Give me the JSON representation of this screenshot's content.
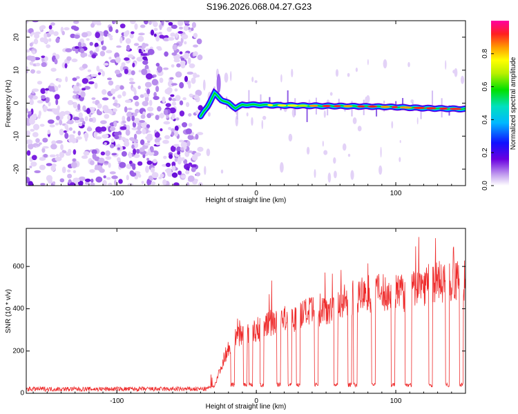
{
  "title": "S196.2026.068.04.27.G23",
  "colors": {
    "snr_line": "#ee2b2b",
    "axis": "#000000",
    "noise_purple": "#7a1fe0",
    "noise_light": "#d9c2f5"
  },
  "chart_data": [
    {
      "type": "heatmap",
      "name": "spectrogram",
      "xlabel": "Height of straight line (km)",
      "ylabel": "Frequency (Hz)",
      "xlim": [
        -165,
        150
      ],
      "ylim": [
        -25,
        25
      ],
      "xticks": [
        -100,
        0,
        100
      ],
      "yticks": [
        -20,
        -10,
        0,
        10,
        20
      ],
      "colorbar": {
        "label": "Normalized spectral amplitude",
        "range": [
          0,
          1
        ],
        "ticks": [
          "0.0",
          "0.2",
          "0.4",
          "0.6",
          "0.8"
        ],
        "tick_values": [
          0.0,
          0.2,
          0.4,
          0.6,
          0.8
        ]
      },
      "noise_region_x": [
        -165,
        -40
      ],
      "signal_trace": {
        "x": [
          -40,
          -35,
          -30,
          -25,
          -20,
          -15,
          -10,
          -5,
          0,
          20,
          40,
          60,
          80,
          100,
          120,
          140,
          150
        ],
        "y": [
          -4,
          -1,
          3,
          1,
          0,
          -1.5,
          -0.5,
          -0.5,
          -0.5,
          -0.7,
          -0.8,
          -0.9,
          -1,
          -1.2,
          -1.5,
          -1.7,
          -1.8
        ]
      }
    },
    {
      "type": "line",
      "name": "snr",
      "xlabel": "Height of straight line (km)",
      "ylabel": "SNR (10 * v/v)",
      "xlim": [
        -165,
        150
      ],
      "ylim": [
        0,
        780
      ],
      "xticks": [
        -100,
        0,
        100
      ],
      "yticks": [
        0,
        200,
        400,
        600
      ],
      "baseline_level": 20,
      "envelope": {
        "x": [
          -165,
          -40,
          -30,
          -25,
          -20,
          -15,
          -10,
          -5,
          0,
          10,
          20,
          30,
          40,
          50,
          60,
          70,
          80,
          90,
          100,
          110,
          120,
          130,
          140,
          150
        ],
        "y": [
          20,
          20,
          40,
          150,
          250,
          300,
          330,
          330,
          340,
          380,
          400,
          420,
          440,
          460,
          490,
          520,
          540,
          540,
          530,
          560,
          590,
          600,
          600,
          600
        ]
      },
      "dropouts_x": [
        -17,
        -8,
        -4,
        4,
        16,
        24,
        30,
        43,
        57,
        67,
        71,
        84,
        98,
        108,
        110,
        125,
        137,
        147
      ]
    }
  ]
}
